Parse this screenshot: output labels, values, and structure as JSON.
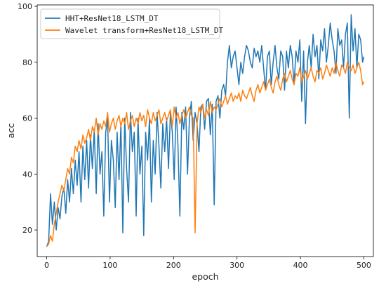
{
  "chart_data": {
    "type": "line",
    "title": "",
    "xlabel": "epoch",
    "ylabel": "acc",
    "xlim": [
      -15,
      515
    ],
    "ylim": [
      10.5,
      100.5
    ],
    "xticks": [
      0,
      100,
      200,
      300,
      400,
      500
    ],
    "yticks": [
      20,
      40,
      60,
      80,
      100
    ],
    "grid": false,
    "legend": "top-left",
    "series": [
      {
        "name": "HHT+ResNet18_LSTM_DT",
        "color": "#1f77b4",
        "x": [
          0,
          3,
          6,
          9,
          12,
          15,
          18,
          21,
          24,
          27,
          30,
          33,
          36,
          39,
          42,
          45,
          48,
          51,
          54,
          57,
          60,
          63,
          66,
          69,
          72,
          75,
          78,
          81,
          84,
          87,
          90,
          93,
          96,
          99,
          102,
          105,
          108,
          111,
          114,
          117,
          120,
          123,
          126,
          129,
          132,
          135,
          138,
          141,
          144,
          147,
          150,
          153,
          156,
          159,
          162,
          165,
          168,
          171,
          174,
          177,
          180,
          183,
          186,
          189,
          192,
          195,
          198,
          201,
          204,
          207,
          210,
          213,
          216,
          219,
          222,
          225,
          228,
          231,
          234,
          237,
          240,
          243,
          246,
          249,
          252,
          255,
          258,
          261,
          264,
          267,
          270,
          273,
          276,
          279,
          282,
          285,
          288,
          291,
          294,
          297,
          300,
          303,
          306,
          309,
          312,
          315,
          318,
          321,
          324,
          327,
          330,
          333,
          336,
          339,
          342,
          345,
          348,
          351,
          354,
          357,
          360,
          363,
          366,
          369,
          372,
          375,
          378,
          381,
          384,
          387,
          390,
          393,
          396,
          399,
          402,
          405,
          408,
          411,
          414,
          417,
          420,
          423,
          426,
          429,
          432,
          435,
          438,
          441,
          444,
          447,
          450,
          453,
          456,
          459,
          462,
          465,
          468,
          471,
          474,
          477,
          480,
          483,
          486,
          489,
          492,
          495,
          498,
          500
        ],
        "y": [
          14,
          16,
          33,
          22,
          30,
          20,
          28,
          24,
          32,
          35,
          26,
          38,
          30,
          42,
          33,
          45,
          36,
          48,
          30,
          50,
          38,
          52,
          35,
          54,
          42,
          56,
          33,
          58,
          40,
          48,
          25,
          55,
          60,
          30,
          52,
          45,
          28,
          55,
          38,
          58,
          19,
          60,
          42,
          30,
          62,
          48,
          55,
          25,
          60,
          40,
          50,
          18,
          55,
          45,
          60,
          30,
          52,
          40,
          62,
          50,
          35,
          58,
          48,
          60,
          42,
          62,
          55,
          38,
          64,
          50,
          25,
          62,
          56,
          64,
          40,
          60,
          66,
          52,
          62,
          58,
          48,
          64,
          65,
          56,
          66,
          67,
          54,
          65,
          29,
          66,
          68,
          60,
          70,
          72,
          68,
          80,
          86,
          78,
          82,
          84,
          78,
          72,
          80,
          76,
          82,
          86,
          84,
          80,
          78,
          85,
          82,
          84,
          80,
          86,
          78,
          70,
          82,
          84,
          72,
          80,
          86,
          78,
          74,
          84,
          82,
          70,
          84,
          78,
          86,
          82,
          72,
          84,
          80,
          88,
          66,
          84,
          58,
          80,
          86,
          78,
          90,
          82,
          86,
          74,
          88,
          84,
          92,
          80,
          86,
          94,
          88,
          84,
          76,
          92,
          86,
          88,
          78,
          90,
          94,
          60,
          97,
          84,
          92,
          78,
          90,
          88,
          80,
          82
        ]
      },
      {
        "name": "Wavelet transform+ResNet18_LSTM_DT",
        "color": "#ff7f0e",
        "x": [
          0,
          3,
          6,
          9,
          12,
          15,
          18,
          21,
          24,
          27,
          30,
          33,
          36,
          39,
          42,
          45,
          48,
          51,
          54,
          57,
          60,
          63,
          66,
          69,
          72,
          75,
          78,
          81,
          84,
          87,
          90,
          93,
          96,
          99,
          102,
          105,
          108,
          111,
          114,
          117,
          120,
          123,
          126,
          129,
          132,
          135,
          138,
          141,
          144,
          147,
          150,
          153,
          156,
          159,
          162,
          165,
          168,
          171,
          174,
          177,
          180,
          183,
          186,
          189,
          192,
          195,
          198,
          201,
          204,
          207,
          210,
          213,
          216,
          219,
          222,
          225,
          228,
          231,
          234,
          237,
          240,
          243,
          246,
          249,
          252,
          255,
          258,
          261,
          264,
          267,
          270,
          273,
          276,
          279,
          282,
          285,
          288,
          291,
          294,
          297,
          300,
          303,
          306,
          309,
          312,
          315,
          318,
          321,
          324,
          327,
          330,
          333,
          336,
          339,
          342,
          345,
          348,
          351,
          354,
          357,
          360,
          363,
          366,
          369,
          372,
          375,
          378,
          381,
          384,
          387,
          390,
          393,
          396,
          399,
          402,
          405,
          408,
          411,
          414,
          417,
          420,
          423,
          426,
          429,
          432,
          435,
          438,
          441,
          444,
          447,
          450,
          453,
          456,
          459,
          462,
          465,
          468,
          471,
          474,
          477,
          480,
          483,
          486,
          489,
          492,
          495,
          498,
          500
        ],
        "y": [
          14,
          15,
          18,
          16,
          22,
          26,
          30,
          33,
          36,
          34,
          38,
          42,
          40,
          46,
          44,
          50,
          48,
          52,
          49,
          54,
          51,
          53,
          56,
          52,
          57,
          55,
          60,
          54,
          58,
          56,
          59,
          57,
          62,
          55,
          58,
          60,
          56,
          59,
          61,
          57,
          60,
          58,
          62,
          56,
          59,
          61,
          57,
          60,
          58,
          62,
          59,
          61,
          57,
          63,
          60,
          58,
          62,
          59,
          61,
          63,
          58,
          60,
          62,
          59,
          61,
          63,
          57,
          64,
          60,
          62,
          58,
          61,
          63,
          60,
          62,
          64,
          61,
          60,
          19,
          58,
          64,
          62,
          65,
          60,
          63,
          61,
          66,
          62,
          64,
          63,
          65,
          67,
          64,
          66,
          68,
          65,
          67,
          69,
          66,
          68,
          67,
          69,
          66,
          70,
          68,
          67,
          69,
          71,
          68,
          66,
          70,
          72,
          69,
          71,
          73,
          70,
          72,
          74,
          71,
          69,
          73,
          75,
          72,
          70,
          74,
          76,
          73,
          75,
          77,
          74,
          72,
          76,
          75,
          78,
          73,
          75,
          77,
          74,
          76,
          78,
          75,
          73,
          77,
          76,
          78,
          74,
          76,
          79,
          77,
          75,
          78,
          76,
          80,
          77,
          75,
          79,
          78,
          76,
          80,
          78,
          77,
          79,
          76,
          78,
          80,
          77,
          72,
          73
        ]
      }
    ]
  }
}
